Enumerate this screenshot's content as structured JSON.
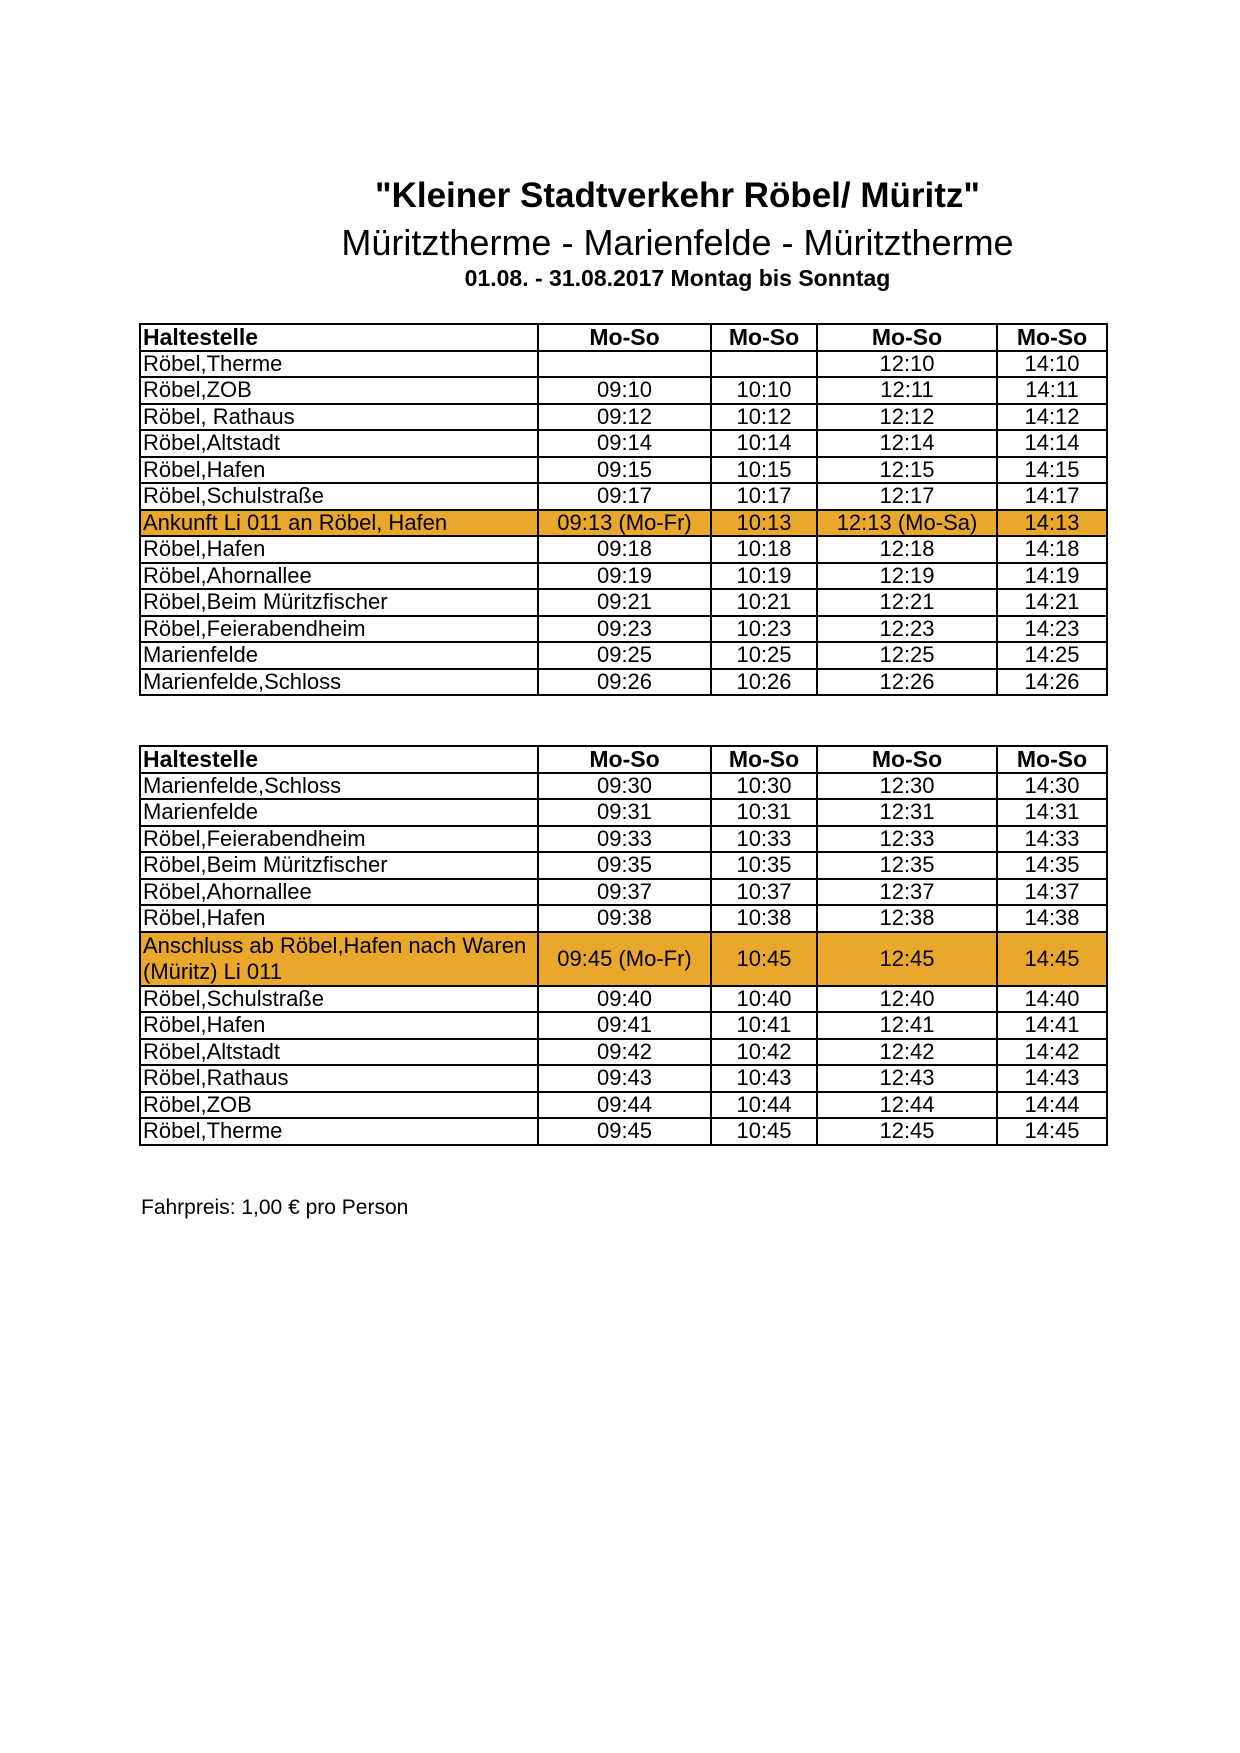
{
  "title": "\"Kleiner Stadtverkehr Röbel/ Müritz\"",
  "subtitle": "Müritztherme - Marienfelde - Müritztherme",
  "dates": "01.08. - 31.08.2017  Montag bis Sonntag",
  "highlight_color": "#e9a72b",
  "table1": {
    "headers": [
      "Haltestelle",
      "Mo-So",
      "Mo-So",
      "Mo-So",
      "Mo-So"
    ],
    "rows": [
      {
        "stop": "Röbel,Therme",
        "times": [
          "",
          "",
          "12:10",
          "14:10"
        ]
      },
      {
        "stop": "Röbel,ZOB",
        "times": [
          "09:10",
          "10:10",
          "12:11",
          "14:11"
        ]
      },
      {
        "stop": "Röbel, Rathaus",
        "times": [
          "09:12",
          "10:12",
          "12:12",
          "14:12"
        ]
      },
      {
        "stop": "Röbel,Altstadt",
        "times": [
          "09:14",
          "10:14",
          "12:14",
          "14:14"
        ]
      },
      {
        "stop": "Röbel,Hafen",
        "times": [
          "09:15",
          "10:15",
          "12:15",
          "14:15"
        ]
      },
      {
        "stop": "Röbel,Schulstraße",
        "times": [
          "09:17",
          "10:17",
          "12:17",
          "14:17"
        ]
      },
      {
        "stop": "Ankunft Li 011 an Röbel, Hafen",
        "times": [
          "09:13 (Mo-Fr)",
          "10:13",
          "12:13 (Mo-Sa)",
          "14:13"
        ],
        "highlight": true
      },
      {
        "stop": "Röbel,Hafen",
        "times": [
          "09:18",
          "10:18",
          "12:18",
          "14:18"
        ]
      },
      {
        "stop": "Röbel,Ahornallee",
        "times": [
          "09:19",
          "10:19",
          "12:19",
          "14:19"
        ]
      },
      {
        "stop": "Röbel,Beim Müritzfischer",
        "times": [
          "09:21",
          "10:21",
          "12:21",
          "14:21"
        ]
      },
      {
        "stop": "Röbel,Feierabendheim",
        "times": [
          "09:23",
          "10:23",
          "12:23",
          "14:23"
        ]
      },
      {
        "stop": "Marienfelde",
        "times": [
          "09:25",
          "10:25",
          "12:25",
          "14:25"
        ]
      },
      {
        "stop": "Marienfelde,Schloss",
        "times": [
          "09:26",
          "10:26",
          "12:26",
          "14:26"
        ]
      }
    ]
  },
  "table2": {
    "headers": [
      "Haltestelle",
      "Mo-So",
      "Mo-So",
      "Mo-So",
      "Mo-So"
    ],
    "rows": [
      {
        "stop": "Marienfelde,Schloss",
        "times": [
          "09:30",
          "10:30",
          "12:30",
          "14:30"
        ]
      },
      {
        "stop": "Marienfelde",
        "times": [
          "09:31",
          "10:31",
          "12:31",
          "14:31"
        ]
      },
      {
        "stop": "Röbel,Feierabendheim",
        "times": [
          "09:33",
          "10:33",
          "12:33",
          "14:33"
        ]
      },
      {
        "stop": "Röbel,Beim Müritzfischer",
        "times": [
          "09:35",
          "10:35",
          "12:35",
          "14:35"
        ]
      },
      {
        "stop": "Röbel,Ahornallee",
        "times": [
          "09:37",
          "10:37",
          "12:37",
          "14:37"
        ]
      },
      {
        "stop": "Röbel,Hafen",
        "times": [
          "09:38",
          "10:38",
          "12:38",
          "14:38"
        ]
      },
      {
        "stop": "Anschluss ab Röbel,Hafen nach Waren (Müritz) Li 011",
        "times": [
          "09:45 (Mo-Fr)",
          "10:45",
          "12:45",
          "14:45"
        ],
        "highlight": true
      },
      {
        "stop": "Röbel,Schulstraße",
        "times": [
          "09:40",
          "10:40",
          "12:40",
          "14:40"
        ]
      },
      {
        "stop": "Röbel,Hafen",
        "times": [
          "09:41",
          "10:41",
          "12:41",
          "14:41"
        ]
      },
      {
        "stop": "Röbel,Altstadt",
        "times": [
          "09:42",
          "10:42",
          "12:42",
          "14:42"
        ]
      },
      {
        "stop": "Röbel,Rathaus",
        "times": [
          "09:43",
          "10:43",
          "12:43",
          "14:43"
        ]
      },
      {
        "stop": "Röbel,ZOB",
        "times": [
          "09:44",
          "10:44",
          "12:44",
          "14:44"
        ]
      },
      {
        "stop": "Röbel,Therme",
        "times": [
          "09:45",
          "10:45",
          "12:45",
          "14:45"
        ]
      }
    ]
  },
  "fare": "Fahrpreis: 1,00 € pro Person"
}
